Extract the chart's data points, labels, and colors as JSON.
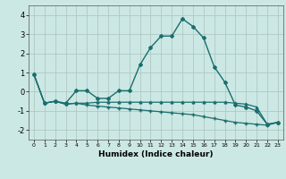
{
  "xlabel": "Humidex (Indice chaleur)",
  "background_color": "#cce8e4",
  "grid_color": "#b0c8c4",
  "line_color": "#1a6e6e",
  "xlim": [
    -0.5,
    23.5
  ],
  "ylim": [
    -2.5,
    4.5
  ],
  "yticks": [
    -2,
    -1,
    0,
    1,
    2,
    3,
    4
  ],
  "xticks": [
    0,
    1,
    2,
    3,
    4,
    5,
    6,
    7,
    8,
    9,
    10,
    11,
    12,
    13,
    14,
    15,
    16,
    17,
    18,
    19,
    20,
    21,
    22,
    23
  ],
  "series1_x": [
    0,
    1,
    2,
    3,
    4,
    5,
    6,
    7,
    8,
    9,
    10,
    11,
    12,
    13,
    14,
    15,
    16,
    17,
    18,
    19,
    20,
    21,
    22,
    23
  ],
  "series1_y": [
    0.9,
    -0.6,
    -0.5,
    -0.6,
    0.05,
    0.05,
    -0.35,
    -0.35,
    0.05,
    0.05,
    1.4,
    2.3,
    2.9,
    2.9,
    3.8,
    3.4,
    2.8,
    1.3,
    0.5,
    -0.7,
    -0.8,
    -1.0,
    -1.7,
    -1.6
  ],
  "series2_x": [
    0,
    1,
    2,
    3,
    4,
    5,
    6,
    7,
    8,
    9,
    10,
    11,
    12,
    13,
    14,
    15,
    16,
    17,
    18,
    19,
    20,
    21,
    22,
    23
  ],
  "series2_y": [
    0.9,
    -0.6,
    -0.5,
    -0.65,
    -0.6,
    -0.6,
    -0.55,
    -0.55,
    -0.55,
    -0.55,
    -0.55,
    -0.55,
    -0.55,
    -0.55,
    -0.55,
    -0.55,
    -0.55,
    -0.55,
    -0.55,
    -0.6,
    -0.65,
    -0.8,
    -1.7,
    -1.6
  ],
  "series3_x": [
    0,
    1,
    2,
    3,
    4,
    5,
    6,
    7,
    8,
    9,
    10,
    11,
    12,
    13,
    14,
    15,
    16,
    17,
    18,
    19,
    20,
    21,
    22,
    23
  ],
  "series3_y": [
    0.9,
    -0.6,
    -0.5,
    -0.65,
    -0.6,
    -0.7,
    -0.75,
    -0.8,
    -0.85,
    -0.9,
    -0.95,
    -1.0,
    -1.05,
    -1.1,
    -1.15,
    -1.2,
    -1.3,
    -1.4,
    -1.5,
    -1.6,
    -1.65,
    -1.7,
    -1.75,
    -1.6
  ]
}
